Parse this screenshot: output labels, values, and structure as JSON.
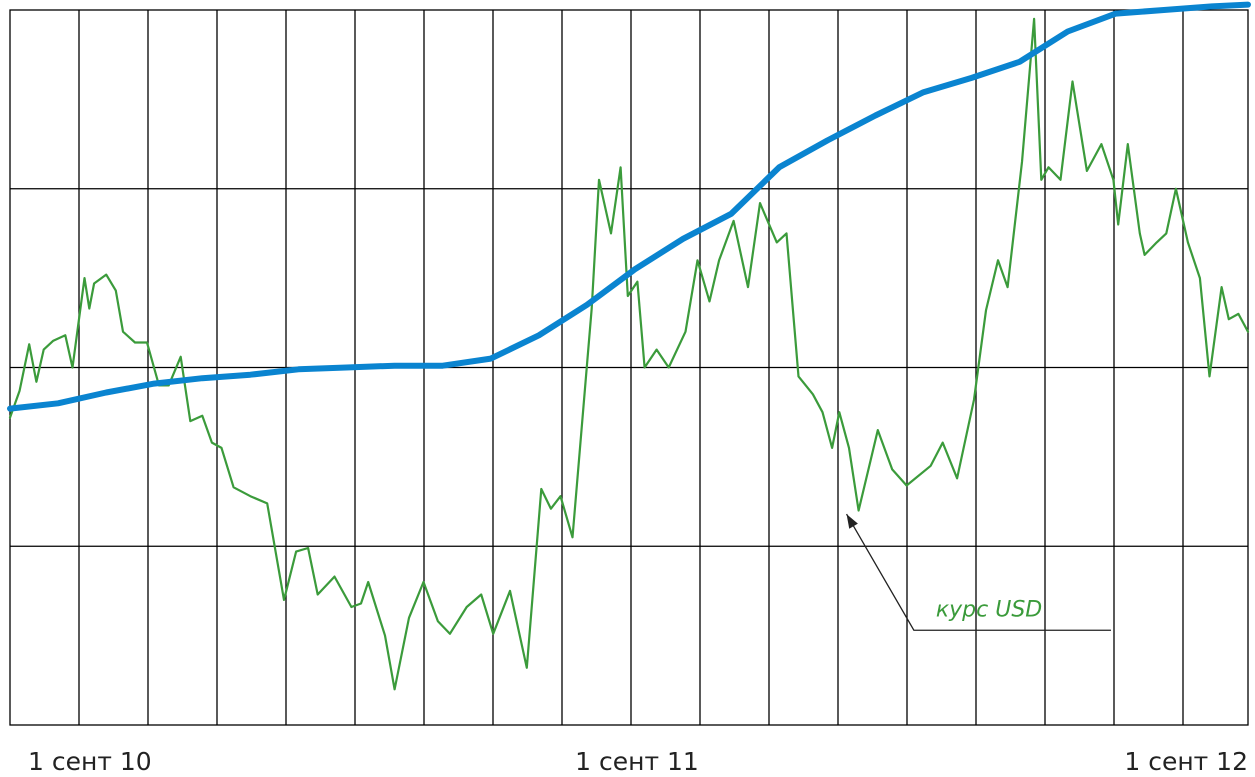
{
  "chart_data": {
    "type": "line",
    "title": "",
    "xlabel": "",
    "ylabel": "",
    "x_range": [
      0,
      24
    ],
    "y_range": [
      0,
      4
    ],
    "grid": {
      "vertical": true,
      "horizontal": true
    },
    "x_tick_labels": [
      {
        "label": "1 сент 10",
        "x": 2
      },
      {
        "label": "1 сент 11",
        "x": 12
      },
      {
        "label": "1 сент 12",
        "x": 23
      }
    ],
    "annotation": {
      "label": "курс USD",
      "series": "usd",
      "target": {
        "x": 18.4,
        "y": 1.18
      },
      "elbow": {
        "x": 19.8,
        "y": 0.53
      },
      "end": {
        "x": 23.9,
        "y": 0.53
      }
    },
    "colors": {
      "usd": "#3b9b3b",
      "trend": "#0a84d0",
      "grid": "#000000",
      "annotation_line": "#222222"
    },
    "series": [
      {
        "id": "usd",
        "name": "курс USD",
        "points": [
          [
            1.0,
            1.72
          ],
          [
            1.2,
            1.87
          ],
          [
            1.4,
            2.13
          ],
          [
            1.55,
            1.92
          ],
          [
            1.7,
            2.1
          ],
          [
            1.9,
            2.15
          ],
          [
            2.15,
            2.18
          ],
          [
            2.3,
            2.0
          ],
          [
            2.55,
            2.5
          ],
          [
            2.65,
            2.33
          ],
          [
            2.75,
            2.47
          ],
          [
            3.0,
            2.52
          ],
          [
            3.2,
            2.43
          ],
          [
            3.35,
            2.2
          ],
          [
            3.6,
            2.14
          ],
          [
            3.85,
            2.14
          ],
          [
            4.1,
            1.9
          ],
          [
            4.3,
            1.9
          ],
          [
            4.55,
            2.06
          ],
          [
            4.75,
            1.7
          ],
          [
            5.0,
            1.73
          ],
          [
            5.2,
            1.58
          ],
          [
            5.4,
            1.55
          ],
          [
            5.65,
            1.33
          ],
          [
            6.0,
            1.28
          ],
          [
            6.35,
            1.24
          ],
          [
            6.7,
            0.7
          ],
          [
            6.95,
            0.97
          ],
          [
            7.2,
            0.99
          ],
          [
            7.4,
            0.73
          ],
          [
            7.75,
            0.83
          ],
          [
            8.1,
            0.66
          ],
          [
            8.3,
            0.68
          ],
          [
            8.45,
            0.8
          ],
          [
            8.8,
            0.5
          ],
          [
            9.0,
            0.2
          ],
          [
            9.3,
            0.6
          ],
          [
            9.6,
            0.8
          ],
          [
            9.9,
            0.58
          ],
          [
            10.15,
            0.51
          ],
          [
            10.5,
            0.66
          ],
          [
            10.8,
            0.73
          ],
          [
            11.05,
            0.51
          ],
          [
            11.4,
            0.75
          ],
          [
            11.75,
            0.32
          ],
          [
            12.05,
            1.32
          ],
          [
            12.25,
            1.21
          ],
          [
            12.45,
            1.28
          ],
          [
            12.7,
            1.05
          ],
          [
            13.1,
            2.33
          ],
          [
            13.25,
            3.05
          ],
          [
            13.5,
            2.75
          ],
          [
            13.7,
            3.12
          ],
          [
            13.85,
            2.4
          ],
          [
            14.05,
            2.48
          ],
          [
            14.2,
            2.0
          ],
          [
            14.45,
            2.1
          ],
          [
            14.7,
            2.0
          ],
          [
            15.05,
            2.2
          ],
          [
            15.3,
            2.6
          ],
          [
            15.55,
            2.37
          ],
          [
            15.75,
            2.6
          ],
          [
            16.05,
            2.82
          ],
          [
            16.35,
            2.45
          ],
          [
            16.6,
            2.92
          ],
          [
            16.95,
            2.7
          ],
          [
            17.15,
            2.75
          ],
          [
            17.4,
            1.95
          ],
          [
            17.7,
            1.85
          ],
          [
            17.9,
            1.75
          ],
          [
            18.1,
            1.55
          ],
          [
            18.25,
            1.75
          ],
          [
            18.45,
            1.55
          ],
          [
            18.65,
            1.2
          ],
          [
            18.9,
            1.48
          ],
          [
            19.05,
            1.65
          ],
          [
            19.35,
            1.43
          ],
          [
            19.65,
            1.34
          ],
          [
            20.15,
            1.45
          ],
          [
            20.4,
            1.58
          ],
          [
            20.7,
            1.38
          ],
          [
            21.05,
            1.82
          ],
          [
            21.3,
            2.32
          ],
          [
            21.55,
            2.6
          ],
          [
            21.75,
            2.45
          ],
          [
            22.05,
            3.15
          ],
          [
            22.3,
            3.95
          ],
          [
            22.45,
            3.05
          ],
          [
            22.6,
            3.12
          ],
          [
            22.85,
            3.05
          ],
          [
            23.1,
            3.6
          ],
          [
            23.4,
            3.1
          ],
          [
            23.7,
            3.25
          ],
          [
            23.95,
            3.05
          ],
          [
            24.05,
            2.8
          ],
          [
            24.25,
            3.25
          ],
          [
            24.5,
            2.75
          ],
          [
            24.6,
            2.63
          ],
          [
            24.85,
            2.7
          ],
          [
            25.05,
            2.75
          ],
          [
            25.25,
            3.0
          ],
          [
            25.5,
            2.7
          ],
          [
            25.75,
            2.5
          ],
          [
            25.95,
            1.95
          ],
          [
            26.2,
            2.45
          ],
          [
            26.35,
            2.27
          ],
          [
            26.55,
            2.3
          ],
          [
            26.75,
            2.2
          ]
        ]
      },
      {
        "id": "trend",
        "name": "",
        "points": [
          [
            1.0,
            1.77
          ],
          [
            2.0,
            1.8
          ],
          [
            3.0,
            1.86
          ],
          [
            4.0,
            1.91
          ],
          [
            5.0,
            1.94
          ],
          [
            6.0,
            1.96
          ],
          [
            7.0,
            1.99
          ],
          [
            8.0,
            2.0
          ],
          [
            9.0,
            2.01
          ],
          [
            10.0,
            2.01
          ],
          [
            11.0,
            2.05
          ],
          [
            12.0,
            2.18
          ],
          [
            13.0,
            2.35
          ],
          [
            14.0,
            2.55
          ],
          [
            15.0,
            2.72
          ],
          [
            16.0,
            2.86
          ],
          [
            17.0,
            3.12
          ],
          [
            18.0,
            3.27
          ],
          [
            19.0,
            3.41
          ],
          [
            20.0,
            3.54
          ],
          [
            21.0,
            3.62
          ],
          [
            22.0,
            3.71
          ],
          [
            23.0,
            3.88
          ],
          [
            24.0,
            3.98
          ],
          [
            25.0,
            4.0
          ],
          [
            26.0,
            4.02
          ],
          [
            26.75,
            4.03
          ]
        ]
      }
    ]
  }
}
